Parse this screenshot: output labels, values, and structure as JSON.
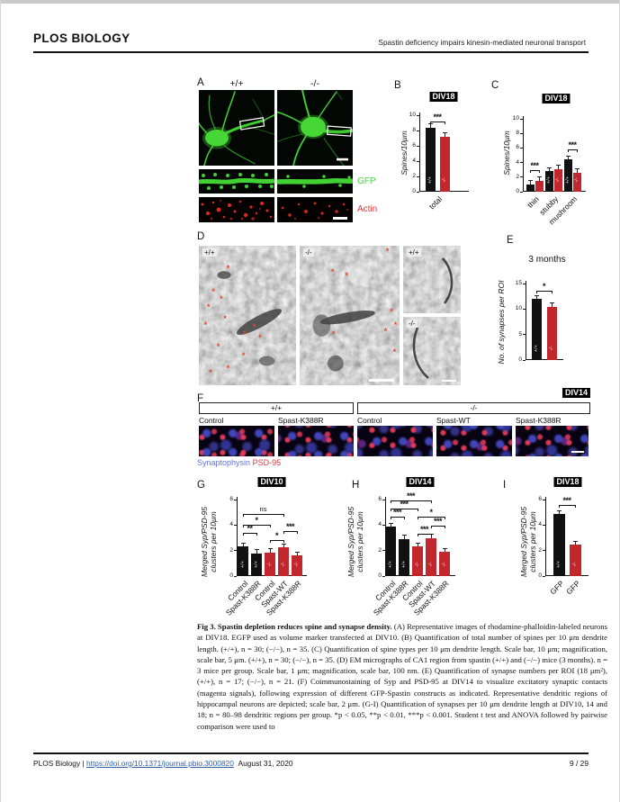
{
  "header": {
    "journal": "PLOS BIOLOGY",
    "running_title": "Spastin deficiency impairs kinesin-mediated neuronal transport"
  },
  "figure": {
    "panelA": {
      "label": "A",
      "col_headers": [
        "+/+",
        "-/-"
      ],
      "gfp_label": "GFP",
      "actin_label": "Actin",
      "gfp_color": "#3ed43e",
      "actin_color": "#e8353a"
    },
    "panelB": {
      "label": "B"
    },
    "panelC": {
      "label": "C"
    },
    "panelD": {
      "label": "D",
      "img_labels": [
        "+/+",
        "-/-",
        "+/+",
        "-/-"
      ],
      "asterisks_left": [
        [
          30,
          16
        ],
        [
          15,
          33
        ],
        [
          23,
          38
        ],
        [
          10,
          44
        ],
        [
          27,
          52
        ],
        [
          7,
          57
        ],
        [
          47,
          63
        ],
        [
          57,
          58
        ],
        [
          63,
          66
        ],
        [
          20,
          72
        ],
        [
          46,
          79
        ],
        [
          30,
          88
        ],
        [
          12,
          91
        ]
      ],
      "asterisks_mid": [
        [
          88,
          4
        ],
        [
          33,
          19
        ],
        [
          47,
          21
        ],
        [
          92,
          47
        ],
        [
          96,
          57
        ],
        [
          86,
          61
        ],
        [
          34,
          63
        ],
        [
          95,
          76
        ]
      ]
    },
    "panelE": {
      "label": "E"
    },
    "panelF": {
      "label": "F",
      "badge": "DIV14",
      "group_labels": [
        "+/+",
        "-/-"
      ],
      "col_labels": [
        "Control",
        "Spast-K388R",
        "Control",
        "Spast-WT",
        "Spast-K388R"
      ],
      "legend": [
        {
          "text": "Synaptophysin",
          "color": "#6472d8"
        },
        {
          "text": "PSD-95",
          "color": "#e8343f"
        }
      ]
    },
    "panelG": {
      "label": "G"
    },
    "panelH": {
      "label": "H"
    },
    "panelI": {
      "label": "I"
    }
  },
  "charts": {
    "B": {
      "type": "bar",
      "title": "DIV18",
      "ylabel_lines": [
        "Spines/10μm"
      ],
      "ymax": 10,
      "yticks": [
        0,
        2,
        4,
        6,
        8,
        10
      ],
      "bars": [
        {
          "value": 8.4,
          "color": "#111111",
          "tag": "+/+"
        },
        {
          "value": 7.2,
          "color": "#c1272d",
          "tag": "-/-"
        }
      ],
      "xlabels": [
        "total"
      ],
      "brackets": [
        {
          "from": 0,
          "to": 1,
          "text": "***",
          "y": 9.2
        }
      ]
    },
    "C": {
      "type": "bar",
      "title": "DIV18",
      "ylabel_lines": [
        "Spines/10μm"
      ],
      "ymax": 10,
      "yticks": [
        0,
        2,
        4,
        6,
        8,
        10
      ],
      "bars": [
        {
          "value": 1.0,
          "color": "#111111",
          "tag": ""
        },
        {
          "value": 1.5,
          "color": "#c1272d",
          "tag": ""
        },
        {
          "value": 2.8,
          "color": "#111111",
          "tag": "+/+"
        },
        {
          "value": 3.1,
          "color": "#c1272d",
          "tag": "-/-"
        },
        {
          "value": 4.4,
          "color": "#111111",
          "tag": "+/+"
        },
        {
          "value": 2.6,
          "color": "#c1272d",
          "tag": "-/-"
        }
      ],
      "xlabels": [
        "thin",
        "stubby",
        "mushroom"
      ],
      "brackets": [
        {
          "from": 0,
          "to": 1,
          "text": "***",
          "y": 3.0
        },
        {
          "from": 4,
          "to": 5,
          "text": "***",
          "y": 5.8
        }
      ]
    },
    "E": {
      "type": "bar",
      "title": "3 months",
      "ylabel_lines": [
        "No. of synapses per ROI"
      ],
      "ymax": 15,
      "yticks": [
        0,
        5,
        10,
        15
      ],
      "bars": [
        {
          "value": 12.0,
          "color": "#111111",
          "tag": "+/+"
        },
        {
          "value": 10.5,
          "color": "#c1272d",
          "tag": "-/-"
        }
      ],
      "xlabels": [],
      "brackets": [
        {
          "from": 0,
          "to": 1,
          "text": "*",
          "y": 13.6
        }
      ]
    },
    "G": {
      "type": "bar",
      "title": "DIV10",
      "ylabel_lines": [
        "Merged Syp/PSD-95",
        "clusters per 10μm"
      ],
      "ymax": 6,
      "yticks": [
        0,
        2,
        4,
        6
      ],
      "bars": [
        {
          "value": 2.3,
          "color": "#111111",
          "tag": "+/+"
        },
        {
          "value": 1.8,
          "color": "#111111",
          "tag": "+/+"
        },
        {
          "value": 1.85,
          "color": "#c1272d",
          "tag": "-/-"
        },
        {
          "value": 2.25,
          "color": "#c1272d",
          "tag": "-/-"
        },
        {
          "value": 1.6,
          "color": "#c1272d",
          "tag": "-/-"
        }
      ],
      "xlabels": [
        "Control",
        "Spast-K388R",
        "Control",
        "Spast-WT",
        "Spast-K388R"
      ],
      "brackets": [
        {
          "from": 0,
          "to": 1,
          "text": "**",
          "y": 3.4
        },
        {
          "from": 0,
          "to": 2,
          "text": "*",
          "y": 4.05
        },
        {
          "from": 0,
          "to": 3,
          "text": "ns",
          "y": 4.9
        },
        {
          "from": 2,
          "to": 3,
          "text": "*",
          "y": 2.85
        },
        {
          "from": 3,
          "to": 4,
          "text": "***",
          "y": 3.5
        }
      ]
    },
    "H": {
      "type": "bar",
      "title": "DIV14",
      "ylabel_lines": [
        "Merged Syp/PSD-95",
        "clusters per 10μm"
      ],
      "ymax": 6,
      "yticks": [
        0,
        2,
        4,
        6
      ],
      "bars": [
        {
          "value": 3.85,
          "color": "#111111",
          "tag": "+/+"
        },
        {
          "value": 2.9,
          "color": "#111111",
          "tag": "+/+"
        },
        {
          "value": 2.3,
          "color": "#c1272d",
          "tag": "-/-"
        },
        {
          "value": 3.0,
          "color": "#c1272d",
          "tag": "-/-"
        },
        {
          "value": 1.9,
          "color": "#c1272d",
          "tag": "-/-"
        }
      ],
      "xlabels": [
        "Control",
        "Spast-K388R",
        "Control",
        "Spast-WT",
        "Spast-K388R"
      ],
      "brackets": [
        {
          "from": 0,
          "to": 1,
          "text": "***",
          "y": 4.65
        },
        {
          "from": 0,
          "to": 2,
          "text": "***",
          "y": 5.3
        },
        {
          "from": 0,
          "to": 3,
          "text": "***",
          "y": 5.95
        },
        {
          "from": 2,
          "to": 3,
          "text": "***",
          "y": 3.3
        },
        {
          "from": 3,
          "to": 4,
          "text": "***",
          "y": 3.95
        },
        {
          "from": 2,
          "to": 4,
          "text": "*",
          "y": 4.65
        }
      ]
    },
    "I": {
      "type": "bar",
      "title": "DIV18",
      "ylabel_lines": [
        "Merged Syp/PSD-95",
        "clusters per 10μm"
      ],
      "ymax": 6,
      "yticks": [
        0,
        2,
        4,
        6
      ],
      "bars": [
        {
          "value": 4.85,
          "color": "#111111",
          "tag": "+/+"
        },
        {
          "value": 2.45,
          "color": "#c1272d",
          "tag": "-/-"
        }
      ],
      "xlabels": [
        "GFP",
        "GFP"
      ],
      "brackets": [
        {
          "from": 0,
          "to": 1,
          "text": "***",
          "y": 5.6
        }
      ]
    }
  },
  "caption": {
    "bold": "Fig 3. Spastin depletion reduces spine and synapse density.",
    "text": " (A) Representative images of rhodamine-phalloidin-labeled neurons at DIV18. EGFP used as volume marker transfected at DIV10. (B) Quantification of total number of spines per 10 μm dendrite length. (+/+), n = 30; (−/−), n = 35. (C) Quantification of spine types per 10 μm dendrite length. Scale bar, 10 μm; magnification, scale bar, 5 μm. (+/+), n = 30; (−/−), n = 35. (D) EM micrographs of CA1 region from spastin (+/+) and (−/−) mice (3 months). n = 3 mice per group. Scale bar, 1 μm; magnification, scale bar, 100 nm. (E) Quantification of synapse numbers per ROI (18 μm²), (+/+), n = 17; (−/−), n = 21. (F) Coimmunostaining of Syp and PSD-95 at DIV14 to visualize excitatory synaptic contacts (magenta signals), following expression of different GFP-Spastin constructs as indicated. Representative dendritic regions of hippocampal neurons are depicted; scale bar, 2 μm. (G-I) Quantification of synapses per 10 μm dendrite length at DIV10, 14 and 18; n = 80–98 dendritic regions per group. *p < 0.05, **p < 0.01, ***p < 0.001. Student t test and ANOVA followed by pairwise comparison were used to"
  },
  "footer": {
    "left_prefix": "PLOS Biology | ",
    "doi": "https://doi.org/10.1371/journal.pbio.3000820",
    "date": "August 31, 2020",
    "page": "9 / 29"
  }
}
